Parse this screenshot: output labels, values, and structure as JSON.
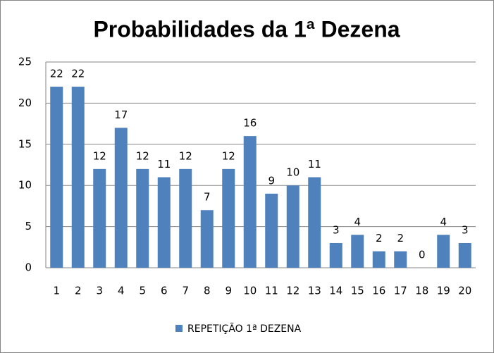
{
  "chart_data": {
    "type": "bar",
    "title": "Probabilidades da 1ª Dezena",
    "categories": [
      "1",
      "2",
      "3",
      "4",
      "5",
      "6",
      "7",
      "8",
      "9",
      "10",
      "11",
      "12",
      "13",
      "14",
      "15",
      "16",
      "17",
      "18",
      "19",
      "20"
    ],
    "series": [
      {
        "name": "REPETIÇÃO 1ª DEZENA",
        "color": "#4f81bd",
        "values": [
          22,
          22,
          12,
          17,
          12,
          11,
          12,
          7,
          12,
          16,
          9,
          10,
          11,
          3,
          4,
          2,
          2,
          0,
          4,
          3
        ]
      }
    ],
    "ylim": [
      0,
      25
    ],
    "yticks": [
      0,
      5,
      10,
      15,
      20,
      25
    ],
    "grid": true,
    "data_labels": true,
    "legend": "bottom"
  }
}
